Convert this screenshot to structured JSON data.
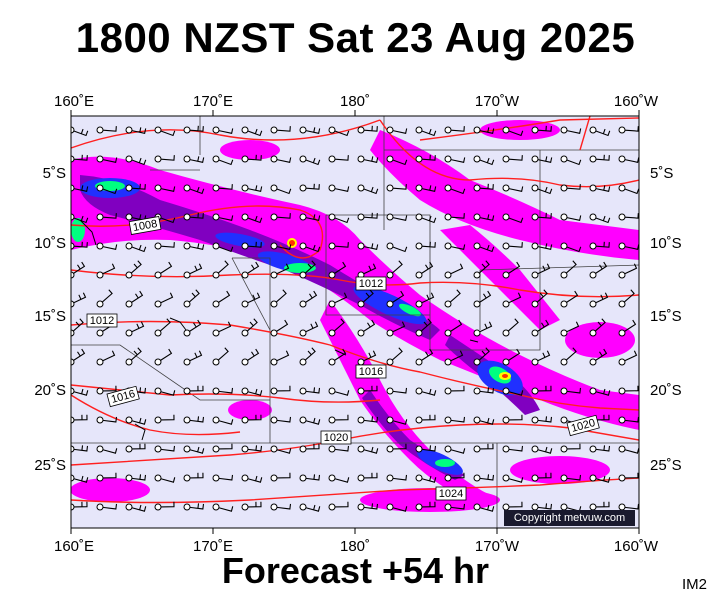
{
  "header": {
    "title": "1800 NZST Sat 23 Aug 2025"
  },
  "footer": {
    "subtitle": "Forecast +54 hr",
    "map_code": "IM2",
    "copyright": "Copyright metvuw.com"
  },
  "map": {
    "lon_labels": [
      "160˚E",
      "170˚E",
      "180˚",
      "170˚W",
      "160˚W"
    ],
    "lat_labels": [
      "5˚S",
      "10˚S",
      "15˚S",
      "20˚S",
      "25˚S"
    ],
    "isobars": [
      "1008",
      "1012",
      "1012",
      "1016",
      "1016",
      "1020",
      "1020",
      "1024"
    ],
    "colors": {
      "background": "#e6e6fa",
      "isobar": "#ff2020",
      "rain_light": "#ff00ff",
      "rain_mid": "#8000c0",
      "rain_heavy": "#2030ff",
      "rain_veryheavy": "#00ff80"
    }
  }
}
